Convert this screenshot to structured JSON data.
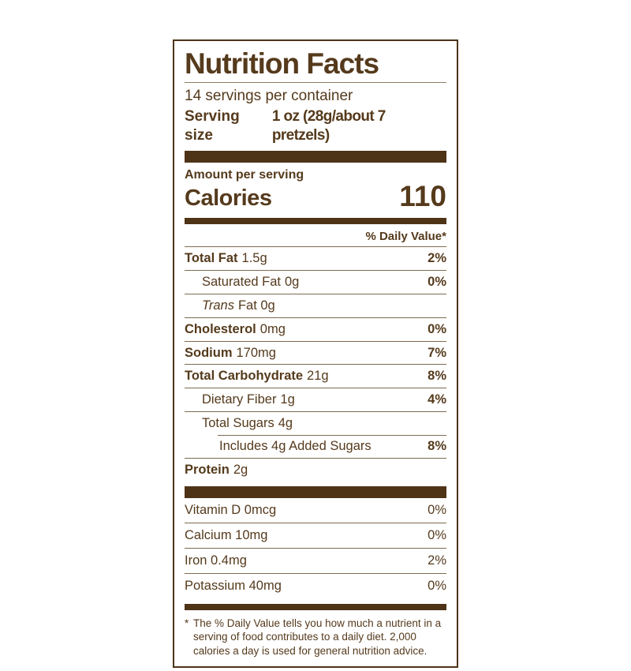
{
  "label": {
    "title": "Nutrition Facts",
    "servings_per_container": "14 servings per container",
    "serving_size_label": "Serving size",
    "serving_size_value": "1 oz (28g/about 7 pretzels)",
    "amount_per_serving": "Amount per serving",
    "calories_label": "Calories",
    "calories_value": "110",
    "daily_value_header": "% Daily Value*",
    "nutrients": [
      {
        "name": "Total Fat",
        "amount": "1.5g",
        "dv": "2%"
      },
      {
        "name": "Saturated Fat",
        "amount": "0g",
        "dv": "0%"
      },
      {
        "name": "Trans",
        "amount": "Fat 0g",
        "dv": ""
      },
      {
        "name": "Cholesterol",
        "amount": "0mg",
        "dv": "0%"
      },
      {
        "name": "Sodium",
        "amount": "170mg",
        "dv": "7%"
      },
      {
        "name": "Total Carbohydrate",
        "amount": "21g",
        "dv": "8%"
      },
      {
        "name": "Dietary Fiber",
        "amount": "1g",
        "dv": "4%"
      },
      {
        "name": "Total Sugars",
        "amount": "4g",
        "dv": ""
      },
      {
        "name": "Includes 4g Added Sugars",
        "amount": "",
        "dv": "8%"
      },
      {
        "name": "Protein",
        "amount": "2g",
        "dv": ""
      }
    ],
    "vitamins": [
      {
        "name": "Vitamin D 0mcg",
        "dv": "0%"
      },
      {
        "name": "Calcium 10mg",
        "dv": "0%"
      },
      {
        "name": "Iron 0.4mg",
        "dv": "2%"
      },
      {
        "name": "Potassium 40mg",
        "dv": "0%"
      }
    ],
    "footnote_marker": "*",
    "footnote": "The % Daily Value tells you how much a nutrient in a serving of food contributes to a daily diet. 2,000 calories a day is used for general nutrition advice.",
    "colors": {
      "brown_text": "#553a1c",
      "bar": "#4e3317",
      "hairline": "#7d6b51"
    }
  }
}
